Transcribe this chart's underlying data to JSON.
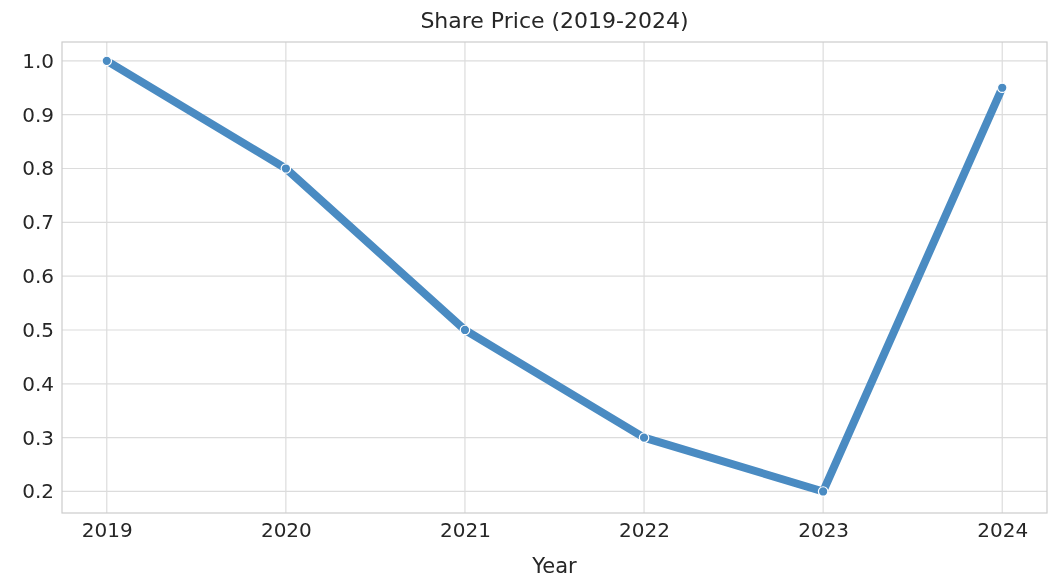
{
  "chart_data": {
    "type": "line",
    "title": "Share Price (2019-2024)",
    "xlabel": "Year",
    "x": [
      2019,
      2020,
      2021,
      2022,
      2023,
      2024
    ],
    "series": [
      {
        "color": "#4a8bc2",
        "values": [
          1.0,
          0.8,
          0.5,
          0.3,
          0.2,
          0.95
        ]
      }
    ],
    "xlim": [
      2018.75,
      2024.25
    ],
    "xticks": [
      2019,
      2020,
      2021,
      2022,
      2023,
      2024
    ],
    "ylim": [
      0.16,
      1.035
    ],
    "yticks": [
      {
        "value": 0.2,
        "label": "0.2"
      },
      {
        "value": 0.3,
        "label": "0.3"
      },
      {
        "value": 0.4,
        "label": "0.4"
      },
      {
        "value": 0.5,
        "label": "0.5"
      },
      {
        "value": 0.6,
        "label": "0.6"
      },
      {
        "value": 0.7,
        "label": "0.7"
      },
      {
        "value": 0.8,
        "label": "0.8"
      },
      {
        "value": 0.9,
        "label": "0.9"
      },
      {
        "value": 1.0,
        "label": "1.0"
      }
    ],
    "grid": true,
    "marker": "circle",
    "line_style": "solid"
  }
}
